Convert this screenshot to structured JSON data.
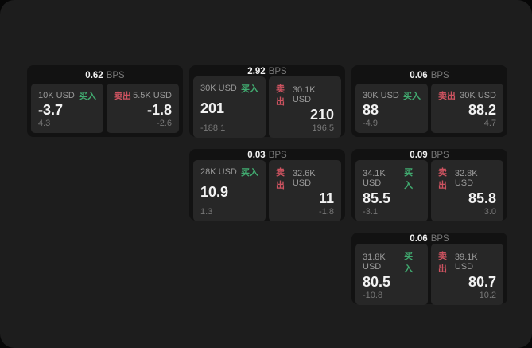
{
  "labels": {
    "bps_suffix": "BPS",
    "buy": "买入",
    "sell": "卖出"
  },
  "colors": {
    "outer_bg": "#070707",
    "panel_bg": "#1d1d1d",
    "card_bg": "#121212",
    "tile_bg": "#272727",
    "text_primary": "#f2f2f2",
    "text_secondary": "#9a9a9a",
    "text_dim": "#787878",
    "buy_green": "#41ab70",
    "sell_red": "#cd5360"
  },
  "cards": [
    {
      "row": 1,
      "col": 1,
      "bps": "0.62",
      "buy": {
        "amount": "10K USD",
        "value": "-3.7",
        "delta": "4.3"
      },
      "sell": {
        "amount": "5.5K USD",
        "value": "-1.8",
        "delta": "-2.6"
      }
    },
    {
      "row": 1,
      "col": 2,
      "bps": "2.92",
      "buy": {
        "amount": "30K USD",
        "value": "201",
        "delta": "-188.1"
      },
      "sell": {
        "amount": "30.1K USD",
        "value": "210",
        "delta": "196.5"
      }
    },
    {
      "row": 1,
      "col": 3,
      "bps": "0.06",
      "buy": {
        "amount": "30K USD",
        "value": "88",
        "delta": "-4.9"
      },
      "sell": {
        "amount": "30K USD",
        "value": "88.2",
        "delta": "4.7"
      }
    },
    {
      "row": 2,
      "col": 2,
      "bps": "0.03",
      "buy": {
        "amount": "28K USD",
        "value": "10.9",
        "delta": "1.3"
      },
      "sell": {
        "amount": "32.6K USD",
        "value": "11",
        "delta": "-1.8"
      }
    },
    {
      "row": 2,
      "col": 3,
      "bps": "0.09",
      "buy": {
        "amount": "34.1K USD",
        "value": "85.5",
        "delta": "-3.1"
      },
      "sell": {
        "amount": "32.8K USD",
        "value": "85.8",
        "delta": "3.0"
      }
    },
    {
      "row": 3,
      "col": 3,
      "bps": "0.06",
      "buy": {
        "amount": "31.8K USD",
        "value": "80.5",
        "delta": "-10.8"
      },
      "sell": {
        "amount": "39.1K USD",
        "value": "80.7",
        "delta": "10.2"
      }
    }
  ]
}
